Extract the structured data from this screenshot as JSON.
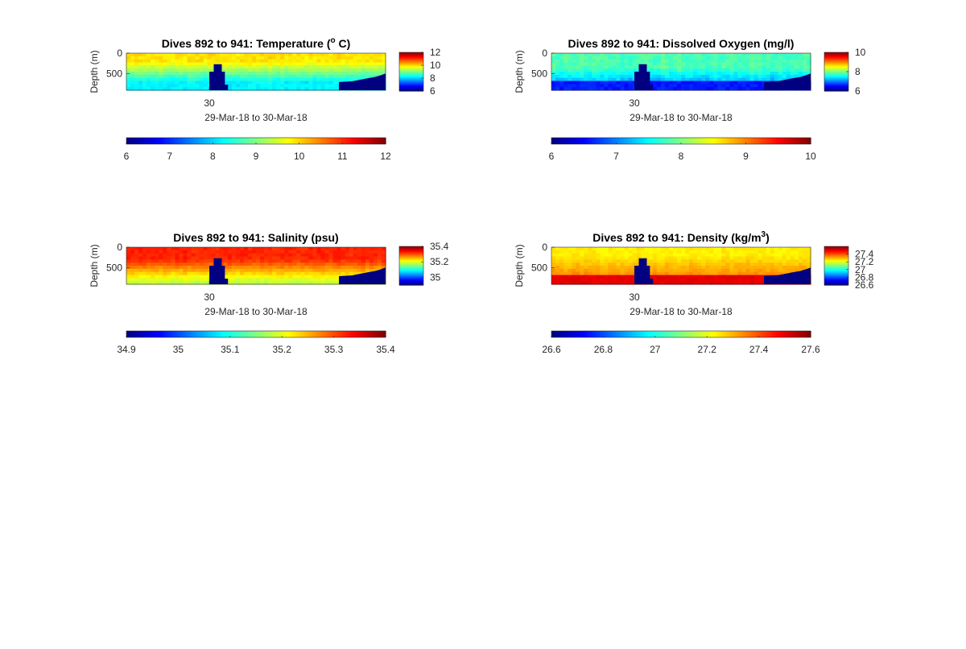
{
  "chart_data": [
    {
      "type": "heatmap",
      "title": "Dives 892 to 941: Temperature (",
      "title_sup": "o",
      "title_end": " C)",
      "ylabel": "Depth (m)",
      "xlabel": "29-Mar-18 to 30-Mar-18",
      "x_tick_labels": [
        "30"
      ],
      "y_tick_labels": [
        "0",
        "500"
      ],
      "ylim": [
        0,
        900
      ],
      "clim": [
        6,
        12
      ],
      "side_colorbar_ticks": [
        "12",
        "10",
        "8",
        "6"
      ],
      "bottom_colorbar_ticks": [
        "6",
        "7",
        "8",
        "9",
        "10",
        "11",
        "12"
      ],
      "surface_value": 9.9,
      "deep_value": 8.2,
      "gradient_depth": [
        200,
        700
      ],
      "noise": 0.25,
      "bottom_layer_value": 7.6,
      "bottom_layer_thickness": 0,
      "notes": "no-data (min colour) masses present"
    },
    {
      "type": "heatmap",
      "title": "Dives 892 to 941: Dissolved Oxygen (mg/l)",
      "ylabel": "Depth (m)",
      "xlabel": "29-Mar-18 to 30-Mar-18",
      "x_tick_labels": [
        "30"
      ],
      "y_tick_labels": [
        "0",
        "500"
      ],
      "ylim": [
        0,
        900
      ],
      "clim": [
        6,
        10
      ],
      "side_colorbar_ticks": [
        "10",
        "8",
        "6"
      ],
      "bottom_colorbar_ticks": [
        "6",
        "7",
        "8",
        "9",
        "10"
      ],
      "surface_value": 7.8,
      "deep_value": 7.0,
      "gradient_depth": [
        350,
        800
      ],
      "noise": 0.22,
      "bottom_layer_value": 6.6,
      "bottom_layer_thickness": 200
    },
    {
      "type": "heatmap",
      "title": "Dives 892 to 941: Salinity (psu)",
      "ylabel": "Depth (m)",
      "xlabel": "29-Mar-18 to 30-Mar-18",
      "x_tick_labels": [
        "30"
      ],
      "y_tick_labels": [
        "0",
        "500"
      ],
      "ylim": [
        0,
        900
      ],
      "clim": [
        34.9,
        35.4
      ],
      "side_colorbar_ticks": [
        "35.4",
        "35.2",
        "35"
      ],
      "bottom_colorbar_ticks": [
        "34.9",
        "35",
        "35.1",
        "35.2",
        "35.3",
        "35.4"
      ],
      "surface_value": 35.32,
      "deep_value": 35.18,
      "gradient_depth": [
        300,
        850
      ],
      "noise": 0.018,
      "bottom_layer_value": 35.17,
      "bottom_layer_thickness": 0
    },
    {
      "type": "heatmap",
      "title": "Dives 892 to 941: Density (kg/m",
      "title_sup": "3",
      "title_end": ")",
      "ylabel": "Depth (m)",
      "xlabel": "29-Mar-18 to 30-Mar-18",
      "x_tick_labels": [
        "30"
      ],
      "y_tick_labels": [
        "0",
        "500"
      ],
      "ylim": [
        0,
        900
      ],
      "clim": [
        26.6,
        27.6
      ],
      "side_colorbar_ticks": [
        "27.4",
        "27.2",
        "27",
        "26.8",
        "26.6"
      ],
      "bottom_colorbar_ticks": [
        "26.6",
        "26.8",
        "27",
        "27.2",
        "27.4",
        "27.6"
      ],
      "surface_value": 27.24,
      "deep_value": 27.34,
      "gradient_depth": [
        200,
        700
      ],
      "noise": 0.03,
      "bottom_layer_value": 27.5,
      "bottom_layer_thickness": 220
    }
  ]
}
